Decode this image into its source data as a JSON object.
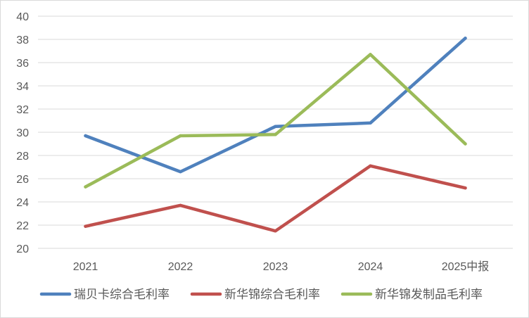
{
  "chart_data": {
    "type": "line",
    "title": "",
    "xlabel": "",
    "ylabel": "",
    "categories": [
      "2021",
      "2022",
      "2023",
      "2024",
      "2025中报"
    ],
    "ylim": [
      20,
      40
    ],
    "yticks": [
      20,
      22,
      24,
      26,
      28,
      30,
      32,
      34,
      36,
      38,
      40
    ],
    "grid": "horizontal",
    "legend": "bottom",
    "series": [
      {
        "name": "瑞贝卡综合毛利率",
        "color": "#4f81bd",
        "values": [
          29.7,
          26.6,
          30.5,
          30.8,
          38.1
        ]
      },
      {
        "name": "新华锦综合毛利率",
        "color": "#c0504d",
        "values": [
          21.9,
          23.7,
          21.5,
          27.1,
          25.2
        ]
      },
      {
        "name": "新华锦发制品毛利率",
        "color": "#9bbb59",
        "values": [
          25.3,
          29.7,
          29.8,
          36.7,
          29.0
        ]
      }
    ]
  }
}
